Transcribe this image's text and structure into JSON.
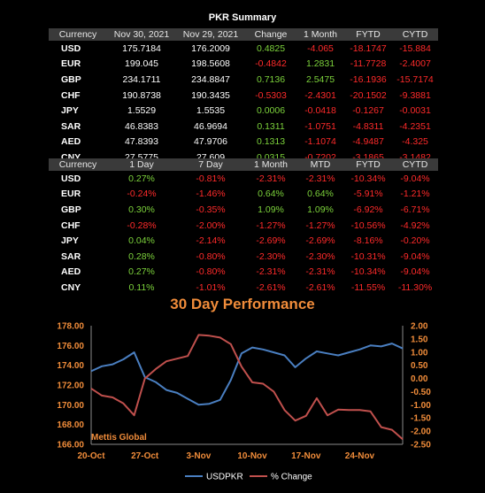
{
  "summary_title": "PKR Summary",
  "table1": {
    "headers": [
      "Currency",
      "Nov 30, 2021",
      "Nov 29, 2021",
      "Change",
      "1 Month",
      "FYTD",
      "CYTD"
    ],
    "rows": [
      {
        "currency": "USD",
        "a": "175.7184",
        "b": "176.2009",
        "change": "0.4825",
        "m1": "-4.065",
        "fytd": "-18.1747",
        "cytd": "-15.884"
      },
      {
        "currency": "EUR",
        "a": "199.045",
        "b": "198.5608",
        "change": "-0.4842",
        "m1": "1.2831",
        "fytd": "-11.7728",
        "cytd": "-2.4007"
      },
      {
        "currency": "GBP",
        "a": "234.1711",
        "b": "234.8847",
        "change": "0.7136",
        "m1": "2.5475",
        "fytd": "-16.1936",
        "cytd": "-15.7174"
      },
      {
        "currency": "CHF",
        "a": "190.8738",
        "b": "190.3435",
        "change": "-0.5303",
        "m1": "-2.4301",
        "fytd": "-20.1502",
        "cytd": "-9.3881"
      },
      {
        "currency": "JPY",
        "a": "1.5529",
        "b": "1.5535",
        "change": "0.0006",
        "m1": "-0.0418",
        "fytd": "-0.1267",
        "cytd": "-0.0031"
      },
      {
        "currency": "SAR",
        "a": "46.8383",
        "b": "46.9694",
        "change": "0.1311",
        "m1": "-1.0751",
        "fytd": "-4.8311",
        "cytd": "-4.2351"
      },
      {
        "currency": "AED",
        "a": "47.8393",
        "b": "47.9706",
        "change": "0.1313",
        "m1": "-1.1074",
        "fytd": "-4.9487",
        "cytd": "-4.325"
      },
      {
        "currency": "CNY",
        "a": "27.5775",
        "b": "27.609",
        "change": "0.0315",
        "m1": "-0.7202",
        "fytd": "-3.1865",
        "cytd": "-3.1482"
      }
    ]
  },
  "table2": {
    "headers": [
      "Currency",
      "1 Day",
      "7 Day",
      "1 Month",
      "MTD",
      "FYTD",
      "CYTD"
    ],
    "rows": [
      {
        "currency": "USD",
        "d1": "0.27%",
        "d7": "-0.81%",
        "m1": "-2.31%",
        "mtd": "-2.31%",
        "fytd": "-10.34%",
        "cytd": "-9.04%"
      },
      {
        "currency": "EUR",
        "d1": "-0.24%",
        "d7": "-1.46%",
        "m1": "0.64%",
        "mtd": "0.64%",
        "fytd": "-5.91%",
        "cytd": "-1.21%"
      },
      {
        "currency": "GBP",
        "d1": "0.30%",
        "d7": "-0.35%",
        "m1": "1.09%",
        "mtd": "1.09%",
        "fytd": "-6.92%",
        "cytd": "-6.71%"
      },
      {
        "currency": "CHF",
        "d1": "-0.28%",
        "d7": "-2.00%",
        "m1": "-1.27%",
        "mtd": "-1.27%",
        "fytd": "-10.56%",
        "cytd": "-4.92%"
      },
      {
        "currency": "JPY",
        "d1": "0.04%",
        "d7": "-2.14%",
        "m1": "-2.69%",
        "mtd": "-2.69%",
        "fytd": "-8.16%",
        "cytd": "-0.20%"
      },
      {
        "currency": "SAR",
        "d1": "0.28%",
        "d7": "-0.80%",
        "m1": "-2.30%",
        "mtd": "-2.30%",
        "fytd": "-10.31%",
        "cytd": "-9.04%"
      },
      {
        "currency": "AED",
        "d1": "0.27%",
        "d7": "-0.80%",
        "m1": "-2.31%",
        "mtd": "-2.31%",
        "fytd": "-10.34%",
        "cytd": "-9.04%"
      },
      {
        "currency": "CNY",
        "d1": "0.11%",
        "d7": "-1.01%",
        "m1": "-2.61%",
        "mtd": "-2.61%",
        "fytd": "-11.55%",
        "cytd": "-11.30%"
      }
    ]
  },
  "colors": {
    "positive": "#7cd23b",
    "negative": "#ff2a2a",
    "accent": "#f08c3a",
    "usd_line": "#4a7fc1",
    "pct_line": "#c0504d"
  },
  "chart_data": {
    "type": "line",
    "title": "30 Day Performance",
    "watermark": "Mettis Global",
    "x": [
      "20-Oct",
      "21-Oct",
      "22-Oct",
      "25-Oct",
      "26-Oct",
      "27-Oct",
      "28-Oct",
      "29-Oct",
      "1-Nov",
      "2-Nov",
      "3-Nov",
      "4-Nov",
      "5-Nov",
      "8-Nov",
      "9-Nov",
      "10-Nov",
      "11-Nov",
      "12-Nov",
      "15-Nov",
      "16-Nov",
      "17-Nov",
      "18-Nov",
      "19-Nov",
      "22-Nov",
      "23-Nov",
      "24-Nov",
      "25-Nov",
      "26-Nov",
      "29-Nov",
      "30-Nov"
    ],
    "x_ticks": [
      "20-Oct",
      "27-Oct",
      "3-Nov",
      "10-Nov",
      "17-Nov",
      "24-Nov"
    ],
    "series": [
      {
        "name": "USDPKR",
        "axis": "left",
        "values": [
          173.4,
          173.9,
          174.1,
          174.6,
          175.3,
          172.8,
          172.3,
          171.5,
          171.2,
          170.6,
          170.0,
          170.1,
          170.5,
          172.5,
          175.2,
          175.8,
          175.6,
          175.3,
          175.0,
          173.8,
          174.7,
          175.4,
          175.2,
          175.0,
          175.3,
          175.6,
          176.0,
          175.9,
          176.2,
          175.7
        ]
      },
      {
        "name": "% Change",
        "axis": "right",
        "values": [
          -0.38,
          -0.65,
          -0.72,
          -0.95,
          -1.4,
          0.0,
          0.35,
          0.65,
          0.75,
          0.85,
          1.65,
          1.62,
          1.55,
          1.3,
          0.45,
          -0.15,
          -0.2,
          -0.5,
          -1.2,
          -1.6,
          -1.42,
          -0.75,
          -1.4,
          -1.18,
          -1.2,
          -1.2,
          -1.25,
          -1.85,
          -1.95,
          -2.31
        ]
      }
    ],
    "y_left": {
      "ticks": [
        "166.00",
        "168.00",
        "170.00",
        "172.00",
        "174.00",
        "176.00",
        "178.00"
      ],
      "lim": [
        166,
        178
      ]
    },
    "y_right": {
      "ticks": [
        "-2.50",
        "-2.00",
        "-1.50",
        "-1.00",
        "-0.50",
        "0.00",
        "0.50",
        "1.00",
        "1.50",
        "2.00"
      ],
      "lim": [
        -2.5,
        2.0
      ]
    },
    "grid": false,
    "legend_placement": "bottom"
  }
}
